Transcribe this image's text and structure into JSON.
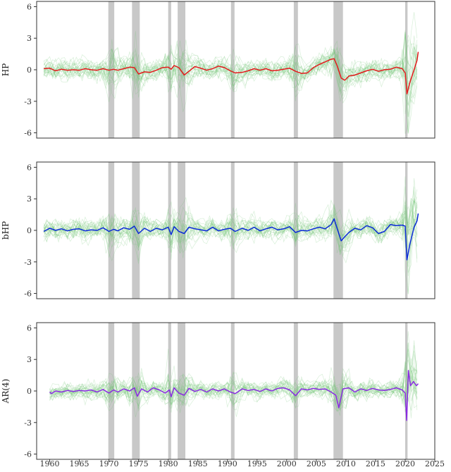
{
  "colors": {
    "recession": "#b3b3b3",
    "draws": "#74c476",
    "HP": "#e41a1c",
    "bHP": "#0a2ad8",
    "AR4": "#8a2be2"
  },
  "chart_data": {
    "type": "line",
    "grid": false,
    "xlim": [
      1957.8,
      2025
    ],
    "x_ticks": [
      "1960",
      "1965",
      "1970",
      "1975",
      "1980",
      "1985",
      "1990",
      "1995",
      "2000",
      "2005",
      "2010",
      "2015",
      "2020",
      "2025"
    ],
    "recessions": [
      [
        1969.9,
        1970.9
      ],
      [
        1973.9,
        1975.2
      ],
      [
        1980.0,
        1980.5
      ],
      [
        1981.6,
        1982.9
      ],
      [
        1990.6,
        1991.2
      ],
      [
        2001.2,
        2001.9
      ],
      [
        2007.9,
        2009.5
      ],
      [
        2020.0,
        2020.4
      ]
    ],
    "panels": [
      {
        "ylabel": "HP",
        "ylim": [
          -6.5,
          6.5
        ],
        "y_ticks": [
          "-6",
          "-3",
          "0",
          "3",
          "6"
        ],
        "series": {
          "color_key": "HP",
          "values": [
            [
              1959.0,
              0.1
            ],
            [
              1960.0,
              0.15
            ],
            [
              1961.0,
              -0.1
            ],
            [
              1962.0,
              0.05
            ],
            [
              1963.0,
              -0.05
            ],
            [
              1964.0,
              0.0
            ],
            [
              1965.0,
              -0.05
            ],
            [
              1966.0,
              0.1
            ],
            [
              1967.0,
              0.0
            ],
            [
              1968.0,
              -0.05
            ],
            [
              1969.0,
              0.1
            ],
            [
              1970.0,
              -0.05
            ],
            [
              1970.8,
              0.05
            ],
            [
              1971.5,
              -0.05
            ],
            [
              1972.5,
              0.1
            ],
            [
              1973.5,
              0.25
            ],
            [
              1974.3,
              0.2
            ],
            [
              1975.0,
              -0.4
            ],
            [
              1976.0,
              -0.2
            ],
            [
              1977.0,
              -0.25
            ],
            [
              1978.0,
              -0.05
            ],
            [
              1979.0,
              0.2
            ],
            [
              1980.0,
              0.25
            ],
            [
              1980.5,
              0.05
            ],
            [
              1981.0,
              0.4
            ],
            [
              1981.8,
              0.2
            ],
            [
              1982.7,
              -0.5
            ],
            [
              1983.5,
              -0.15
            ],
            [
              1984.5,
              0.3
            ],
            [
              1985.5,
              0.15
            ],
            [
              1986.5,
              -0.05
            ],
            [
              1987.5,
              0.1
            ],
            [
              1988.5,
              0.35
            ],
            [
              1989.5,
              0.2
            ],
            [
              1990.5,
              -0.1
            ],
            [
              1991.3,
              -0.3
            ],
            [
              1992.5,
              -0.25
            ],
            [
              1993.5,
              -0.1
            ],
            [
              1994.5,
              0.1
            ],
            [
              1995.5,
              -0.05
            ],
            [
              1996.5,
              0.1
            ],
            [
              1997.5,
              -0.1
            ],
            [
              1998.5,
              -0.05
            ],
            [
              1999.5,
              0.05
            ],
            [
              2000.5,
              0.15
            ],
            [
              2001.5,
              -0.15
            ],
            [
              2002.5,
              -0.35
            ],
            [
              2003.5,
              -0.3
            ],
            [
              2004.5,
              0.2
            ],
            [
              2005.5,
              0.5
            ],
            [
              2006.5,
              0.75
            ],
            [
              2007.5,
              1.0
            ],
            [
              2008.0,
              1.05
            ],
            [
              2008.5,
              0.4
            ],
            [
              2009.2,
              -0.8
            ],
            [
              2009.8,
              -1.0
            ],
            [
              2010.5,
              -0.6
            ],
            [
              2011.5,
              -0.5
            ],
            [
              2012.5,
              -0.3
            ],
            [
              2013.5,
              -0.1
            ],
            [
              2014.5,
              0.05
            ],
            [
              2015.5,
              -0.15
            ],
            [
              2016.5,
              0.0
            ],
            [
              2017.5,
              0.05
            ],
            [
              2018.5,
              0.25
            ],
            [
              2019.5,
              0.1
            ],
            [
              2020.0,
              -0.3
            ],
            [
              2020.3,
              -2.3
            ],
            [
              2020.8,
              -1.2
            ],
            [
              2021.5,
              0.0
            ],
            [
              2022.0,
              0.9
            ],
            [
              2022.2,
              1.7
            ]
          ]
        }
      },
      {
        "ylabel": "bHP",
        "ylim": [
          -6.5,
          6.5
        ],
        "y_ticks": [
          "-6",
          "-3",
          "0",
          "3",
          "6"
        ],
        "series": {
          "color_key": "bHP",
          "values": [
            [
              1959.0,
              -0.1
            ],
            [
              1960.0,
              0.2
            ],
            [
              1961.0,
              0.0
            ],
            [
              1962.0,
              0.15
            ],
            [
              1963.0,
              -0.05
            ],
            [
              1964.0,
              0.1
            ],
            [
              1965.0,
              0.15
            ],
            [
              1966.0,
              -0.05
            ],
            [
              1967.0,
              0.05
            ],
            [
              1968.0,
              0.0
            ],
            [
              1969.0,
              0.25
            ],
            [
              1970.0,
              -0.1
            ],
            [
              1970.8,
              0.1
            ],
            [
              1971.5,
              -0.05
            ],
            [
              1972.5,
              0.25
            ],
            [
              1973.5,
              0.1
            ],
            [
              1974.3,
              0.4
            ],
            [
              1975.0,
              -0.3
            ],
            [
              1976.0,
              0.2
            ],
            [
              1977.0,
              -0.1
            ],
            [
              1978.0,
              0.2
            ],
            [
              1979.0,
              0.05
            ],
            [
              1980.0,
              0.3
            ],
            [
              1980.5,
              -0.4
            ],
            [
              1981.0,
              0.35
            ],
            [
              1981.8,
              -0.1
            ],
            [
              1982.7,
              -0.3
            ],
            [
              1983.5,
              0.3
            ],
            [
              1984.5,
              0.15
            ],
            [
              1985.5,
              0.05
            ],
            [
              1986.5,
              -0.05
            ],
            [
              1987.5,
              0.3
            ],
            [
              1988.5,
              -0.05
            ],
            [
              1989.5,
              0.1
            ],
            [
              1990.5,
              0.2
            ],
            [
              1991.3,
              -0.1
            ],
            [
              1992.5,
              0.2
            ],
            [
              1993.5,
              0.0
            ],
            [
              1994.5,
              0.3
            ],
            [
              1995.5,
              -0.05
            ],
            [
              1996.5,
              0.15
            ],
            [
              1997.5,
              0.3
            ],
            [
              1998.5,
              0.05
            ],
            [
              1999.5,
              0.15
            ],
            [
              2000.5,
              0.35
            ],
            [
              2001.5,
              -0.2
            ],
            [
              2002.5,
              0.0
            ],
            [
              2003.5,
              -0.05
            ],
            [
              2004.5,
              0.15
            ],
            [
              2005.5,
              0.3
            ],
            [
              2006.5,
              0.15
            ],
            [
              2007.5,
              0.55
            ],
            [
              2008.0,
              1.1
            ],
            [
              2008.5,
              0.2
            ],
            [
              2009.2,
              -1.0
            ],
            [
              2009.8,
              -0.6
            ],
            [
              2010.5,
              -0.2
            ],
            [
              2011.5,
              0.2
            ],
            [
              2012.5,
              0.05
            ],
            [
              2013.5,
              0.45
            ],
            [
              2014.5,
              0.25
            ],
            [
              2015.5,
              -0.3
            ],
            [
              2016.5,
              -0.1
            ],
            [
              2017.5,
              0.55
            ],
            [
              2018.5,
              0.45
            ],
            [
              2019.5,
              0.5
            ],
            [
              2020.0,
              0.4
            ],
            [
              2020.3,
              -2.8
            ],
            [
              2020.8,
              -1.3
            ],
            [
              2021.5,
              0.3
            ],
            [
              2022.0,
              0.9
            ],
            [
              2022.2,
              1.6
            ]
          ]
        }
      },
      {
        "ylabel": "AR(4)",
        "ylim": [
          -6.5,
          6.5
        ],
        "y_ticks": [
          "-6",
          "-3",
          "0",
          "3",
          "6"
        ],
        "series": {
          "color_key": "AR4",
          "values": [
            [
              1960.0,
              -0.1
            ],
            [
              1960.3,
              -0.25
            ],
            [
              1961.0,
              0.0
            ],
            [
              1962.0,
              -0.1
            ],
            [
              1963.0,
              0.05
            ],
            [
              1964.0,
              -0.05
            ],
            [
              1965.0,
              0.05
            ],
            [
              1966.0,
              0.0
            ],
            [
              1967.0,
              0.1
            ],
            [
              1968.0,
              -0.1
            ],
            [
              1969.0,
              0.15
            ],
            [
              1970.0,
              -0.2
            ],
            [
              1970.8,
              0.1
            ],
            [
              1971.5,
              -0.1
            ],
            [
              1972.5,
              0.2
            ],
            [
              1973.5,
              0.0
            ],
            [
              1974.3,
              0.3
            ],
            [
              1974.8,
              -0.5
            ],
            [
              1975.5,
              0.2
            ],
            [
              1976.5,
              -0.1
            ],
            [
              1977.5,
              0.3
            ],
            [
              1978.5,
              0.1
            ],
            [
              1979.5,
              -0.2
            ],
            [
              1980.2,
              0.1
            ],
            [
              1980.5,
              -0.55
            ],
            [
              1981.0,
              0.3
            ],
            [
              1981.8,
              -0.2
            ],
            [
              1982.7,
              -0.4
            ],
            [
              1983.5,
              0.25
            ],
            [
              1984.5,
              -0.05
            ],
            [
              1985.5,
              0.15
            ],
            [
              1986.5,
              -0.1
            ],
            [
              1987.5,
              0.2
            ],
            [
              1988.5,
              0.0
            ],
            [
              1989.5,
              0.2
            ],
            [
              1990.5,
              -0.1
            ],
            [
              1991.3,
              -0.25
            ],
            [
              1992.5,
              0.2
            ],
            [
              1993.5,
              0.05
            ],
            [
              1994.5,
              0.15
            ],
            [
              1995.5,
              -0.05
            ],
            [
              1996.5,
              0.2
            ],
            [
              1997.5,
              0.0
            ],
            [
              1998.5,
              0.25
            ],
            [
              1999.5,
              0.3
            ],
            [
              2000.5,
              0.1
            ],
            [
              2001.5,
              -0.45
            ],
            [
              2002.5,
              0.2
            ],
            [
              2003.5,
              0.1
            ],
            [
              2004.5,
              0.25
            ],
            [
              2005.5,
              0.15
            ],
            [
              2006.5,
              0.2
            ],
            [
              2007.5,
              -0.1
            ],
            [
              2008.3,
              -0.4
            ],
            [
              2008.8,
              -1.6
            ],
            [
              2009.5,
              0.2
            ],
            [
              2010.5,
              0.3
            ],
            [
              2011.5,
              -0.1
            ],
            [
              2012.5,
              0.2
            ],
            [
              2013.5,
              0.05
            ],
            [
              2014.5,
              0.25
            ],
            [
              2015.5,
              0.1
            ],
            [
              2016.5,
              0.05
            ],
            [
              2017.5,
              0.15
            ],
            [
              2018.5,
              0.3
            ],
            [
              2019.5,
              0.1
            ],
            [
              2020.0,
              -0.2
            ],
            [
              2020.25,
              -2.8
            ],
            [
              2020.55,
              1.95
            ],
            [
              2020.9,
              0.5
            ],
            [
              2021.4,
              0.9
            ],
            [
              2021.9,
              0.5
            ],
            [
              2022.2,
              0.7
            ]
          ]
        }
      }
    ]
  }
}
